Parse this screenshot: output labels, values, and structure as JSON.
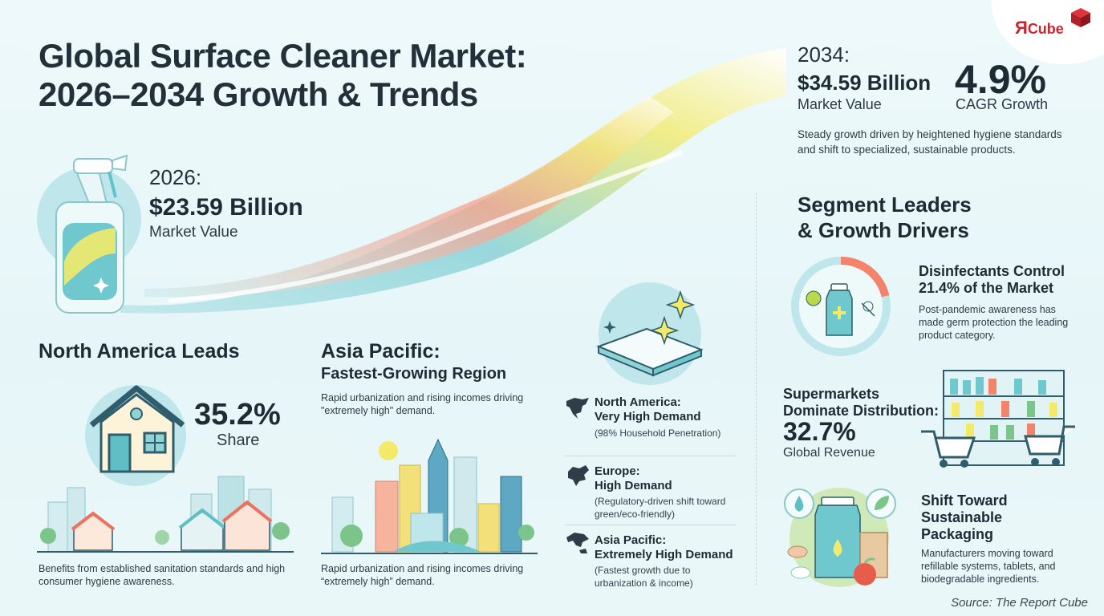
{
  "title": {
    "line1": "Global Surface Cleaner Market:",
    "line2": "2026–2034 Growth & Trends"
  },
  "logo": {
    "mark": "Я",
    "text": "Cube"
  },
  "start": {
    "year": "2026:",
    "value": "$23.59 Billion",
    "label": "Market Value"
  },
  "end": {
    "year": "2034:",
    "value": "$34.59 Billion",
    "label": "Market Value",
    "cagr_value": "4.9%",
    "cagr_label": "CAGR Growth",
    "description": "Steady growth driven by heightened hygiene standards and shift to specialized, sustainable products."
  },
  "north_america": {
    "heading": "North America Leads",
    "share_value": "35.2%",
    "share_label": "Share",
    "description": "Benefits from established sanitation standards and high consumer hygiene awareness."
  },
  "asia_pacific": {
    "heading_line1": "Asia Pacific:",
    "heading_line2": "Fastest-Growing Region",
    "description_top": "Rapid urbanization and rising incomes driving \"extremely high\" demand.",
    "description_bottom": "Rapid urbanization and rising incomes driving “extremely high” demand."
  },
  "demand": [
    {
      "title_line1": "North America:",
      "title_line2": "Very High Demand",
      "note": "(98% Household Penetration)"
    },
    {
      "title_line1": "Europe:",
      "title_line2": "High Demand",
      "note": "(Regulatory-driven shift toward green/eco-friendly)"
    },
    {
      "title_line1": "Asia Pacific:",
      "title_line2": "Extremely High Demand",
      "note": "(Fastest growth due to urbanization & income)"
    }
  ],
  "segments": {
    "heading_line1": "Segment Leaders",
    "heading_line2": "& Growth Drivers",
    "disinfectants": {
      "title_line1": "Disinfectants Control",
      "title_line2": "21.4% of the Market",
      "share_fraction": 0.214,
      "description": "Post-pandemic awareness has made germ protection the leading product category."
    },
    "supermarkets": {
      "title_line1": "Supermarkets",
      "title_line2": "Dominate Distribution:",
      "value": "32.7%",
      "label": "Global Revenue"
    },
    "sustainable": {
      "title_line1": "Shift Toward",
      "title_line2": "Sustainable",
      "title_line3": "Packaging",
      "description": "Manufacturers moving toward refillable systems, tablets, and biodegradable ingredients."
    }
  },
  "source": "Source: The Report Cube",
  "colors": {
    "accent_teal": "#5fc3c8",
    "accent_coral": "#f3846b",
    "accent_yellow": "#f3ea6a",
    "brand_red": "#c8262e"
  }
}
